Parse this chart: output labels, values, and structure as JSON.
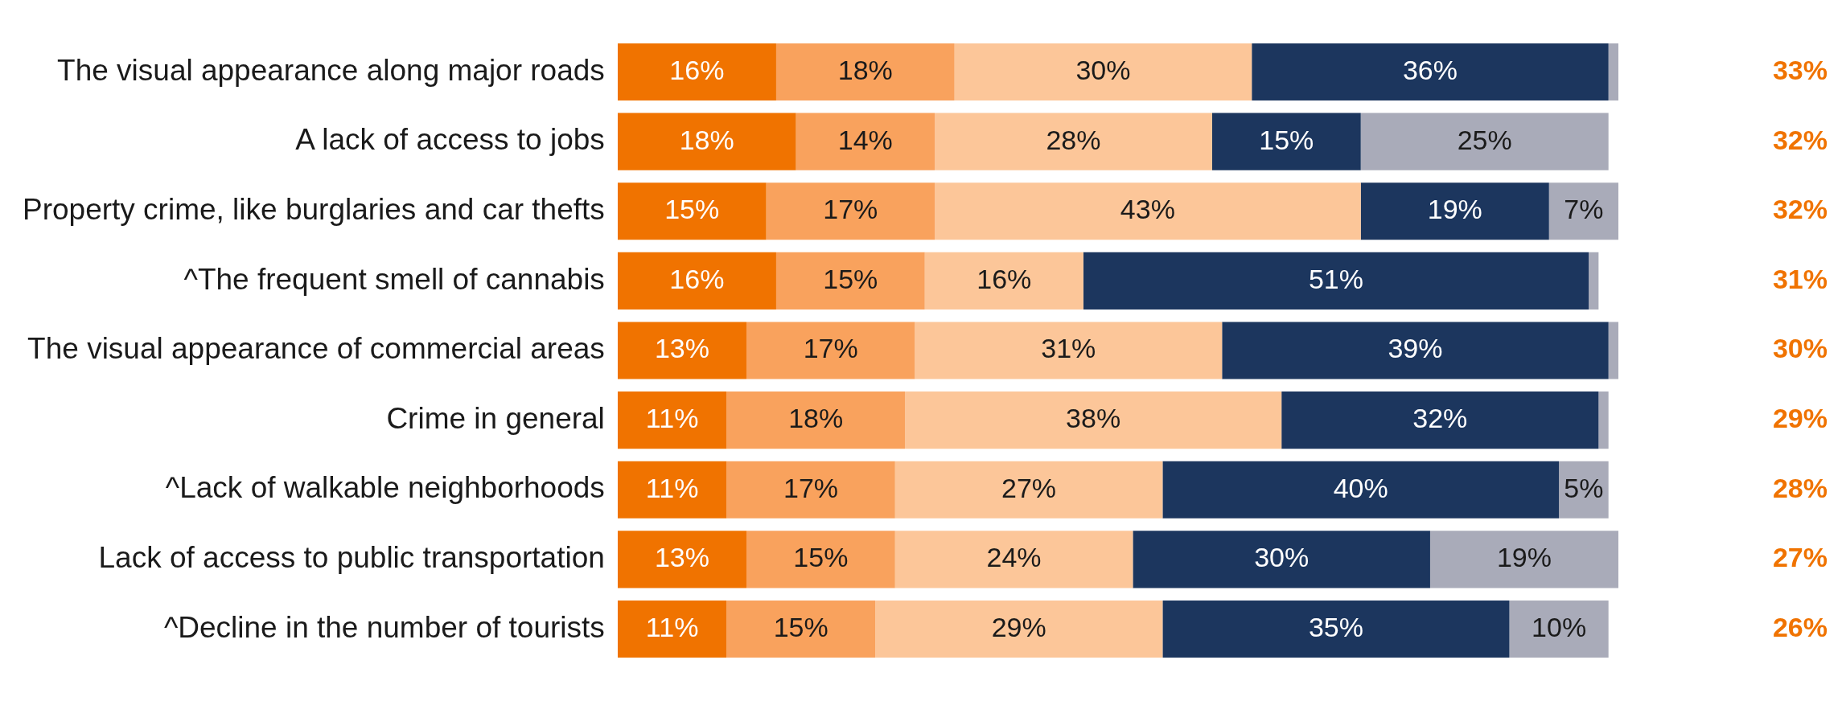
{
  "chart_data": {
    "type": "bar",
    "orientation": "horizontal",
    "stacked": true,
    "grid": false,
    "legend": false,
    "tick_labels": "y",
    "categories": [
      "The visual appearance along major roads",
      "A lack of access to jobs",
      "Property crime, like burglaries and car thefts",
      "^The frequent smell of cannabis",
      "The visual appearance of commercial areas",
      "Crime in general",
      "^Lack of walkable neighborhoods",
      "Lack of access to public transportation",
      "^Decline in the number of tourists"
    ],
    "series": [
      {
        "color": "#f07300",
        "values": [
          16,
          18,
          15,
          16,
          13,
          11,
          11,
          13,
          11
        ],
        "value_labels": [
          "16%",
          "18%",
          "15%",
          "16%",
          "13%",
          "11%",
          "11%",
          "13%",
          "11%"
        ]
      },
      {
        "color": "#f9a25d",
        "values": [
          18,
          14,
          17,
          15,
          17,
          18,
          17,
          15,
          15
        ],
        "value_labels": [
          "18%",
          "14%",
          "17%",
          "15%",
          "17%",
          "18%",
          "17%",
          "15%",
          "15%"
        ]
      },
      {
        "color": "#fcc699",
        "values": [
          30,
          28,
          43,
          16,
          31,
          38,
          27,
          24,
          29
        ],
        "value_labels": [
          "30%",
          "28%",
          "43%",
          "16%",
          "31%",
          "38%",
          "27%",
          "24%",
          "29%"
        ]
      },
      {
        "color": "#1c365e",
        "values": [
          36,
          15,
          19,
          51,
          39,
          32,
          40,
          30,
          35
        ],
        "value_labels": [
          "36%",
          "15%",
          "19%",
          "51%",
          "39%",
          "32%",
          "40%",
          "30%",
          "35%"
        ]
      },
      {
        "color": "#a9abb9",
        "values": [
          1,
          25,
          7,
          1,
          1,
          1,
          5,
          19,
          10
        ],
        "value_labels": [
          null,
          "25%",
          "7%",
          null,
          null,
          null,
          "5%",
          "19%",
          "10%"
        ]
      }
    ],
    "annotations": [
      "33%",
      "32%",
      "32%",
      "31%",
      "30%",
      "29%",
      "28%",
      "27%",
      "26%"
    ]
  }
}
